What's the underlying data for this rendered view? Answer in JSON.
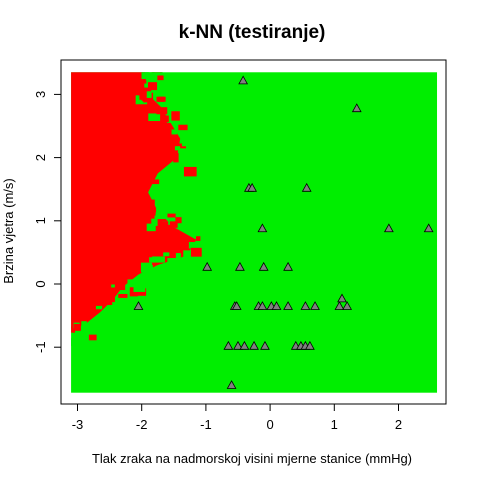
{
  "chart_data": {
    "type": "scatter",
    "title": "k-NN (testiranje)",
    "xlabel": "Tlak zraka na nadmorskoj visini mjerne stanice (mmHg)",
    "ylabel": "Brzina vjetra (m/s)",
    "xlim": [
      -3.1,
      2.6
    ],
    "ylim": [
      -1.72,
      3.35
    ],
    "x_ticks": [
      "-3",
      "-2",
      "-1",
      "0",
      "1",
      "2"
    ],
    "y_ticks": [
      "-1",
      "0",
      "1",
      "2",
      "3"
    ],
    "grid": false,
    "regions": [
      {
        "class": "red",
        "color": "#ff0000"
      },
      {
        "class": "green",
        "color": "#00ee00"
      }
    ],
    "background_color": "#00ee00",
    "region_color": "#ff0000",
    "red_region_boundary": [
      [
        -3.1,
        3.35
      ],
      [
        -1.95,
        3.35
      ],
      [
        -1.9,
        3.0
      ],
      [
        -1.7,
        2.8
      ],
      [
        -1.55,
        2.55
      ],
      [
        -1.4,
        2.3
      ],
      [
        -1.45,
        2.0
      ],
      [
        -1.75,
        1.75
      ],
      [
        -1.9,
        1.45
      ],
      [
        -1.75,
        1.15
      ],
      [
        -1.5,
        0.9
      ],
      [
        -1.15,
        0.7
      ],
      [
        -1.3,
        0.45
      ],
      [
        -1.75,
        0.3
      ],
      [
        -2.05,
        0.15
      ],
      [
        -2.3,
        -0.05
      ],
      [
        -2.45,
        -0.25
      ],
      [
        -2.65,
        -0.45
      ],
      [
        -2.9,
        -0.65
      ],
      [
        -3.1,
        -0.7
      ]
    ],
    "points": [
      {
        "x": -0.42,
        "y": 3.22
      },
      {
        "x": 1.35,
        "y": 2.78
      },
      {
        "x": -0.33,
        "y": 1.52
      },
      {
        "x": -0.28,
        "y": 1.52
      },
      {
        "x": 0.57,
        "y": 1.52
      },
      {
        "x": -0.12,
        "y": 0.88
      },
      {
        "x": 1.85,
        "y": 0.88
      },
      {
        "x": 2.47,
        "y": 0.88
      },
      {
        "x": -0.98,
        "y": 0.27
      },
      {
        "x": -0.47,
        "y": 0.27
      },
      {
        "x": -0.1,
        "y": 0.27
      },
      {
        "x": 0.28,
        "y": 0.27
      },
      {
        "x": -2.05,
        "y": -0.35
      },
      {
        "x": -0.55,
        "y": -0.35
      },
      {
        "x": -0.52,
        "y": -0.35
      },
      {
        "x": -0.18,
        "y": -0.35
      },
      {
        "x": -0.12,
        "y": -0.35
      },
      {
        "x": 0.02,
        "y": -0.35
      },
      {
        "x": 0.1,
        "y": -0.35
      },
      {
        "x": 0.28,
        "y": -0.35
      },
      {
        "x": 0.55,
        "y": -0.35
      },
      {
        "x": 0.7,
        "y": -0.35
      },
      {
        "x": 1.08,
        "y": -0.35
      },
      {
        "x": 1.2,
        "y": -0.35
      },
      {
        "x": 1.12,
        "y": -0.23
      },
      {
        "x": -0.65,
        "y": -0.98
      },
      {
        "x": -0.5,
        "y": -0.98
      },
      {
        "x": -0.4,
        "y": -0.98
      },
      {
        "x": -0.25,
        "y": -0.98
      },
      {
        "x": -0.08,
        "y": -0.98
      },
      {
        "x": 0.4,
        "y": -0.98
      },
      {
        "x": 0.48,
        "y": -0.98
      },
      {
        "x": 0.55,
        "y": -0.98
      },
      {
        "x": 0.62,
        "y": -0.98
      },
      {
        "x": -0.6,
        "y": -1.6
      }
    ],
    "point_style": {
      "marker": "triangle",
      "fill": "#808080",
      "stroke": "#000000"
    }
  }
}
